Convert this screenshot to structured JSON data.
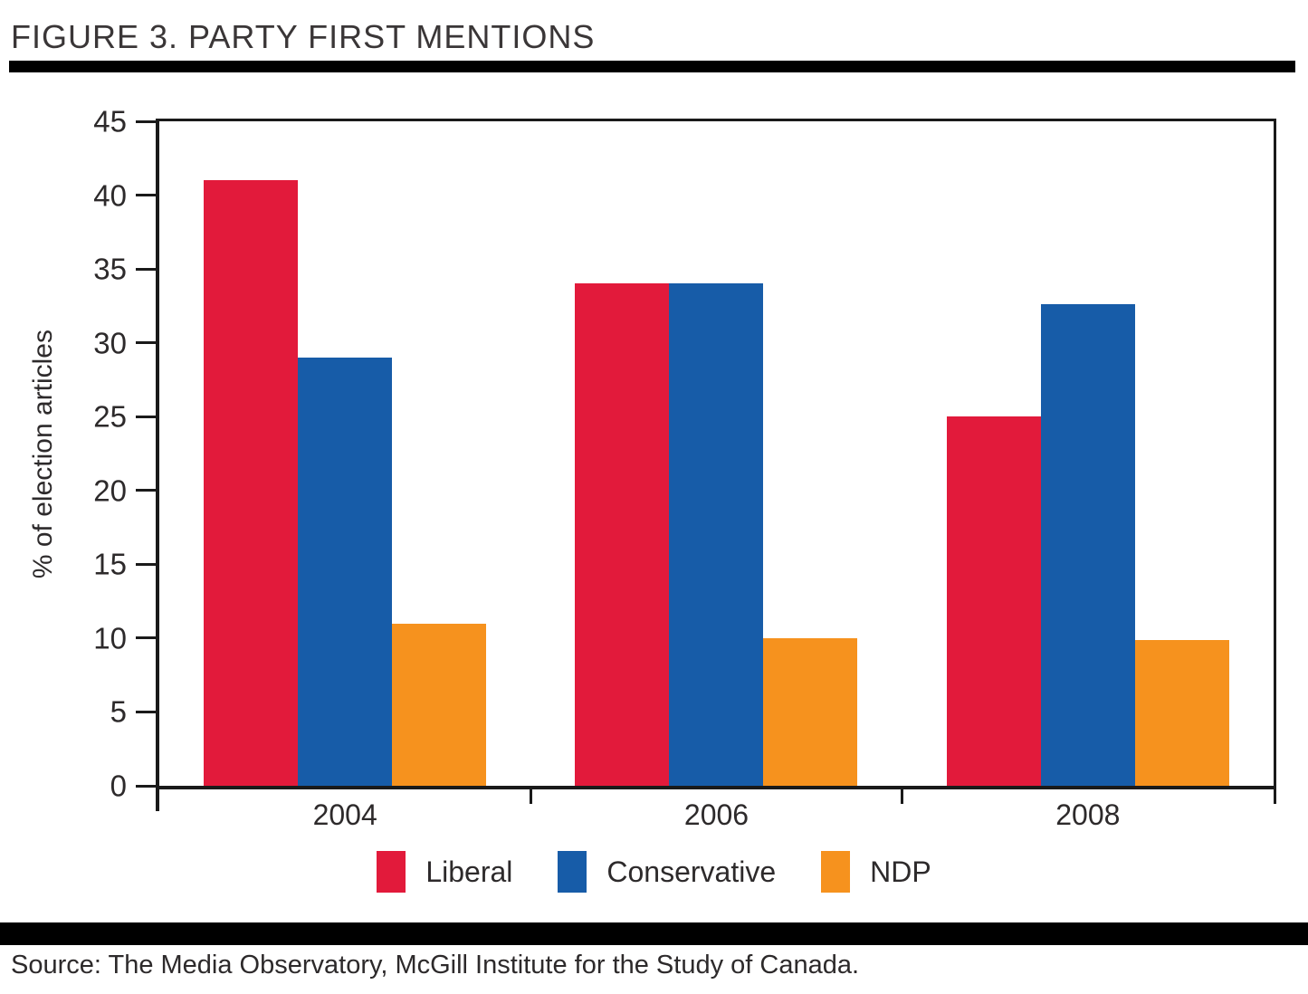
{
  "figure": {
    "title": "FIGURE 3. PARTY FIRST MENTIONS",
    "source": "Source: The Media Observatory, McGill Institute for the Study of Canada."
  },
  "chart_data": {
    "type": "bar",
    "title": "FIGURE 3. PARTY FIRST MENTIONS",
    "categories": [
      "2004",
      "2006",
      "2008"
    ],
    "series": [
      {
        "name": "Liberal",
        "color": "#e21a3b",
        "values": [
          41,
          34,
          25
        ]
      },
      {
        "name": "Conservative",
        "color": "#175ca8",
        "values": [
          29,
          34,
          32.6
        ]
      },
      {
        "name": "NDP",
        "color": "#f6921e",
        "values": [
          11,
          10,
          9.9
        ]
      }
    ],
    "xlabel": "",
    "ylabel": "% of election articles",
    "ylim": [
      0,
      45
    ],
    "yticks": [
      0,
      5,
      10,
      15,
      20,
      25,
      30,
      35,
      40,
      45
    ],
    "grid": false,
    "legend_position": "bottom",
    "axis_color": "#1a1a1a"
  }
}
